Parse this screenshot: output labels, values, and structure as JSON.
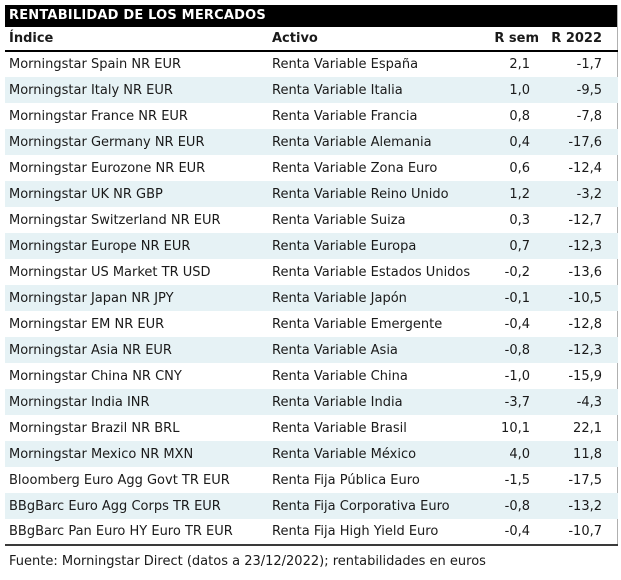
{
  "figure": {
    "title": "RENTABILIDAD DE LOS MERCADOS",
    "source_note": "Fuente: Morningstar Direct (datos a 23/12/2022); rentabilidades en euros"
  },
  "table": {
    "columns": [
      "Índice",
      "Activo",
      "R sem",
      "R 2022"
    ],
    "rows": [
      [
        "Morningstar Spain NR EUR",
        "Renta Variable España",
        "2,1",
        "-1,7"
      ],
      [
        "Morningstar Italy NR EUR",
        "Renta Variable Italia",
        "1,0",
        "-9,5"
      ],
      [
        "Morningstar France NR EUR",
        "Renta Variable Francia",
        "0,8",
        "-7,8"
      ],
      [
        "Morningstar Germany NR EUR",
        "Renta Variable Alemania",
        "0,4",
        "-17,6"
      ],
      [
        "Morningstar Eurozone NR EUR",
        "Renta Variable Zona Euro",
        "0,6",
        "-12,4"
      ],
      [
        "Morningstar UK NR GBP",
        "Renta Variable Reino Unido",
        "1,2",
        "-3,2"
      ],
      [
        "Morningstar Switzerland NR EUR",
        "Renta Variable Suiza",
        "0,3",
        "-12,7"
      ],
      [
        "Morningstar Europe NR EUR",
        "Renta Variable Europa",
        "0,7",
        "-12,3"
      ],
      [
        "Morningstar US Market TR USD",
        "Renta Variable Estados Unidos",
        "-0,2",
        "-13,6"
      ],
      [
        "Morningstar Japan NR JPY",
        "Renta Variable Japón",
        "-0,1",
        "-10,5"
      ],
      [
        "Morningstar EM NR EUR",
        "Renta Variable Emergente",
        "-0,4",
        "-12,8"
      ],
      [
        "Morningstar Asia NR EUR",
        "Renta Variable Asia",
        "-0,8",
        "-12,3"
      ],
      [
        "Morningstar China NR CNY",
        "Renta Variable China",
        "-1,0",
        "-15,9"
      ],
      [
        "Morningstar India INR",
        "Renta Variable India",
        "-3,7",
        "-4,3"
      ],
      [
        "Morningstar Brazil NR BRL",
        "Renta Variable Brasil",
        "10,1",
        "22,1"
      ],
      [
        "Morningstar Mexico NR MXN",
        "Renta Variable México",
        "4,0",
        "11,8"
      ],
      [
        "Bloomberg Euro Agg Govt TR EUR",
        "Renta Fija Pública Euro",
        "-1,5",
        "-17,5"
      ],
      [
        "BBgBarc Euro Agg Corps TR EUR",
        "Renta Fija Corporativa Euro",
        "-0,8",
        "-13,2"
      ],
      [
        "BBgBarc Pan Euro HY Euro TR EUR",
        "Renta Fija High Yield Euro",
        "-0,4",
        "-10,7"
      ]
    ]
  },
  "colors": {
    "title_bg": "#000000",
    "title_text": "#ffffff",
    "row_stripe": "#e6f2f5",
    "text": "#1a1a1a",
    "header_rule": "#000000",
    "footer_rule": "#3a3a3a"
  },
  "chart_data": {
    "type": "table",
    "title": "RENTABILIDAD DE LOS MERCADOS",
    "columns": [
      "Índice",
      "Activo",
      "R sem",
      "R 2022"
    ],
    "rows": [
      {
        "indice": "Morningstar Spain NR EUR",
        "activo": "Renta Variable España",
        "r_sem": 2.1,
        "r_2022": -1.7
      },
      {
        "indice": "Morningstar Italy NR EUR",
        "activo": "Renta Variable Italia",
        "r_sem": 1.0,
        "r_2022": -9.5
      },
      {
        "indice": "Morningstar France NR EUR",
        "activo": "Renta Variable Francia",
        "r_sem": 0.8,
        "r_2022": -7.8
      },
      {
        "indice": "Morningstar Germany NR EUR",
        "activo": "Renta Variable Alemania",
        "r_sem": 0.4,
        "r_2022": -17.6
      },
      {
        "indice": "Morningstar Eurozone NR EUR",
        "activo": "Renta Variable Zona Euro",
        "r_sem": 0.6,
        "r_2022": -12.4
      },
      {
        "indice": "Morningstar UK NR GBP",
        "activo": "Renta Variable Reino Unido",
        "r_sem": 1.2,
        "r_2022": -3.2
      },
      {
        "indice": "Morningstar Switzerland NR EUR",
        "activo": "Renta Variable Suiza",
        "r_sem": 0.3,
        "r_2022": -12.7
      },
      {
        "indice": "Morningstar Europe NR EUR",
        "activo": "Renta Variable Europa",
        "r_sem": 0.7,
        "r_2022": -12.3
      },
      {
        "indice": "Morningstar US Market TR USD",
        "activo": "Renta Variable Estados Unidos",
        "r_sem": -0.2,
        "r_2022": -13.6
      },
      {
        "indice": "Morningstar Japan NR JPY",
        "activo": "Renta Variable Japón",
        "r_sem": -0.1,
        "r_2022": -10.5
      },
      {
        "indice": "Morningstar EM NR EUR",
        "activo": "Renta Variable Emergente",
        "r_sem": -0.4,
        "r_2022": -12.8
      },
      {
        "indice": "Morningstar Asia NR EUR",
        "activo": "Renta Variable Asia",
        "r_sem": -0.8,
        "r_2022": -12.3
      },
      {
        "indice": "Morningstar China NR CNY",
        "activo": "Renta Variable China",
        "r_sem": -1.0,
        "r_2022": -15.9
      },
      {
        "indice": "Morningstar India INR",
        "activo": "Renta Variable India",
        "r_sem": -3.7,
        "r_2022": -4.3
      },
      {
        "indice": "Morningstar Brazil NR BRL",
        "activo": "Renta Variable Brasil",
        "r_sem": 10.1,
        "r_2022": 22.1
      },
      {
        "indice": "Morningstar Mexico NR MXN",
        "activo": "Renta Variable México",
        "r_sem": 4.0,
        "r_2022": 11.8
      },
      {
        "indice": "Bloomberg Euro Agg Govt TR EUR",
        "activo": "Renta Fija Pública Euro",
        "r_sem": -1.5,
        "r_2022": -17.5
      },
      {
        "indice": "BBgBarc Euro Agg Corps TR EUR",
        "activo": "Renta Fija Corporativa Euro",
        "r_sem": -0.8,
        "r_2022": -13.2
      },
      {
        "indice": "BBgBarc Pan Euro HY Euro TR EUR",
        "activo": "Renta Fija High Yield Euro",
        "r_sem": -0.4,
        "r_2022": -10.7
      }
    ],
    "source": "Fuente: Morningstar Direct (datos a 23/12/2022); rentabilidades en euros",
    "layout": {
      "striped_rows": "even",
      "value_alignment": "right",
      "decimal_separator": ","
    }
  }
}
